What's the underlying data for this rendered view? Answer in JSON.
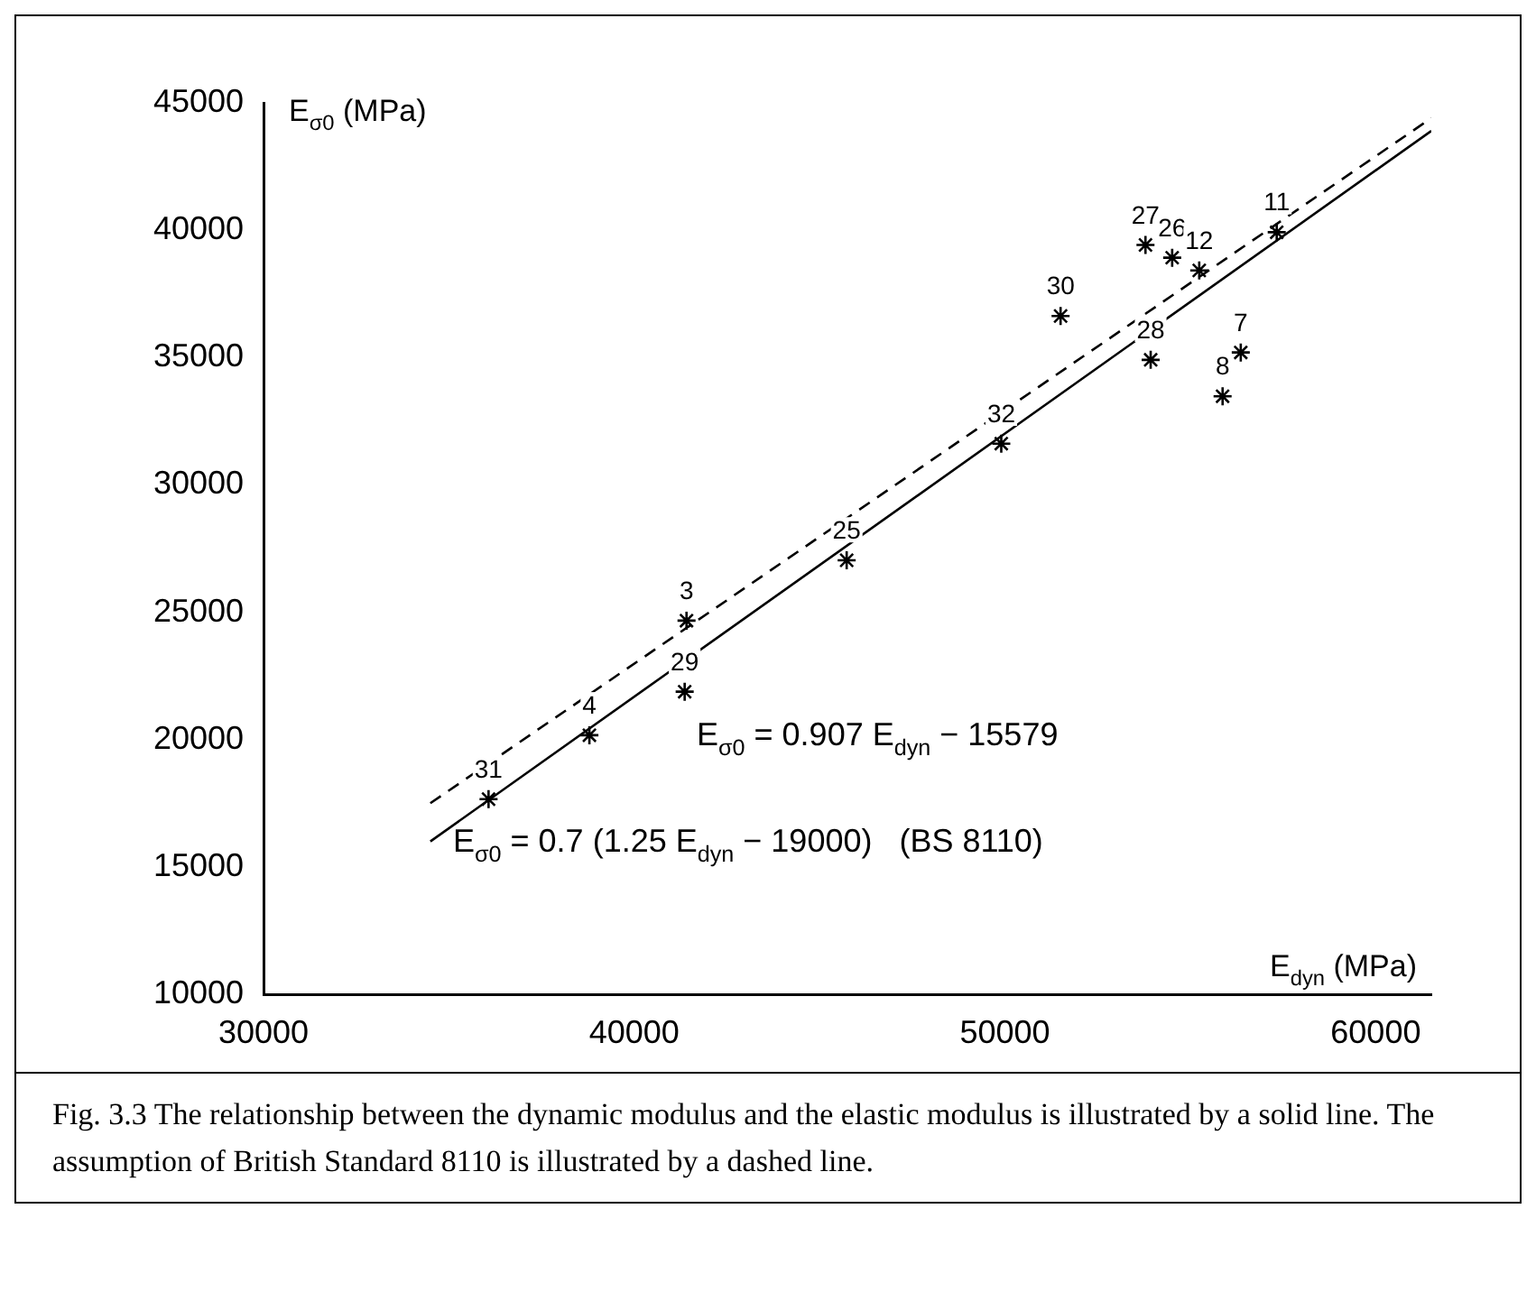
{
  "chart_data": {
    "type": "scatter",
    "xlabel": "E$_{dyn}$ (MPa)",
    "ylabel": "E$_{σ0}$ (MPa)",
    "xlim": [
      30000,
      61500
    ],
    "xticks": [
      30000,
      40000,
      50000,
      60000
    ],
    "ylim": [
      10000,
      45000
    ],
    "yticks": [
      10000,
      15000,
      20000,
      25000,
      30000,
      35000,
      40000,
      45000
    ],
    "grid": false,
    "legend": false,
    "marker": "cross",
    "series": [
      {
        "color": "#000000",
        "x": [
          36070,
          38790,
          41360,
          41410,
          45730,
          49900,
          51500,
          53930,
          53790,
          54510,
          55240,
          57330,
          56360,
          55870
        ],
        "values": [
          17660,
          20170,
          21880,
          24670,
          27040,
          31620,
          36630,
          34910,
          39420,
          38920,
          38420,
          39920,
          35200,
          33480
        ]
      },
      {
        "type": "line",
        "color": "#000000",
        "line_style": "solid",
        "marker": "none",
        "x": [
          34500,
          61500
        ],
        "values": [
          16000,
          43900
        ]
      },
      {
        "type": "line",
        "color": "#000000",
        "line_style": "dashed",
        "marker": "none",
        "x": [
          34500,
          61500
        ],
        "values": [
          17500,
          44400
        ]
      }
    ],
    "annotations": [
      {
        "text": "31",
        "x": 36070,
        "y": 17660
      },
      {
        "text": "4",
        "x": 38790,
        "y": 20170
      },
      {
        "text": "29",
        "x": 41360,
        "y": 21880
      },
      {
        "text": "3",
        "x": 41410,
        "y": 24670
      },
      {
        "text": "25",
        "x": 45730,
        "y": 27040
      },
      {
        "text": "32",
        "x": 49900,
        "y": 31620
      },
      {
        "text": "30",
        "x": 51500,
        "y": 36630
      },
      {
        "text": "28",
        "x": 53930,
        "y": 34910
      },
      {
        "text": "27",
        "x": 53790,
        "y": 39420
      },
      {
        "text": "26",
        "x": 54510,
        "y": 38920
      },
      {
        "text": "12",
        "x": 55240,
        "y": 38420
      },
      {
        "text": "11",
        "x": 57330,
        "y": 39920
      },
      {
        "text": "7",
        "x": 56360,
        "y": 35200
      },
      {
        "text": "8",
        "x": 55870,
        "y": 33480
      },
      "E$_{σ0}$ = 0.907 E$_{dyn}$ − 15579",
      "E$_{σ0}$ = 0.7 (1.25 E$_{dyn}$ − 19000)   (BS 8110)",
      "Fig. 3.3  The relationship between the dynamic modulus and the elastic modulus is illustrated by a solid line. The assumption of British Standard 8110 is illustrated by a dashed line."
    ]
  }
}
